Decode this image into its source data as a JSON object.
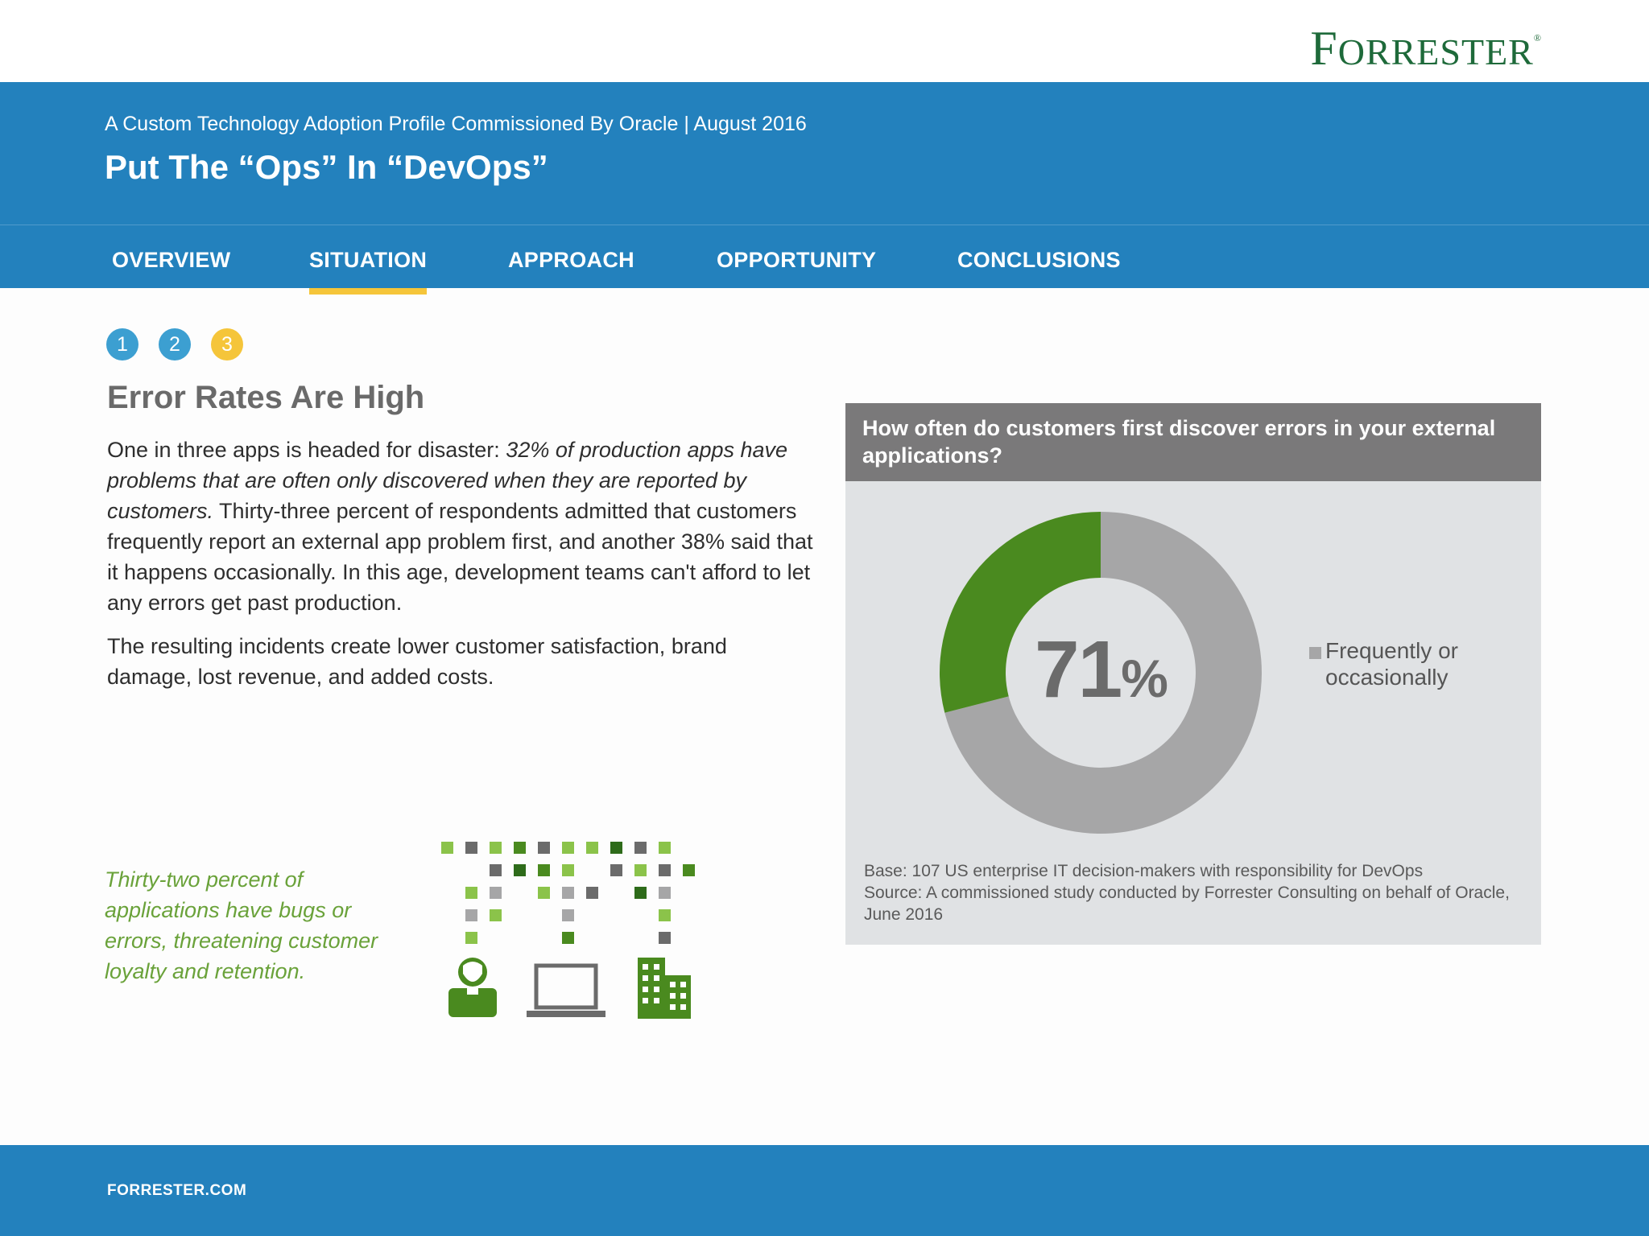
{
  "brand": {
    "logo_text": "FORRESTER",
    "registered_mark": "®"
  },
  "header": {
    "subtitle": "A Custom Technology Adoption Profile Commissioned By Oracle | August 2016",
    "title": "Put The “Ops” In “DevOps”"
  },
  "nav": {
    "items": [
      {
        "label": "OVERVIEW"
      },
      {
        "label": "SITUATION",
        "active": true
      },
      {
        "label": "APPROACH"
      },
      {
        "label": "OPPORTUNITY"
      },
      {
        "label": "CONCLUSIONS"
      }
    ]
  },
  "steps": [
    {
      "label": "1",
      "color": "#3c9fd1"
    },
    {
      "label": "2",
      "color": "#3c9fd1"
    },
    {
      "label": "3",
      "color": "#f5c53a",
      "active": true
    }
  ],
  "section": {
    "heading": "Error Rates Are High",
    "p1_lead": "One in three apps is headed for disaster: ",
    "p1_italic": "32% of production apps have problems that are often only discovered when they are reported by customers.",
    "p1_rest": " Thirty-three percent of respondents admitted that customers frequently report an external app problem first, and another 38% said that it happens occasionally. In this age, development teams can't afford to let any errors get past production.",
    "p2": "The resulting incidents create lower customer satisfaction, brand damage, lost revenue, and added costs."
  },
  "callout": "Thirty-two percent of applications have bugs or errors, threatening customer loyalty and retention.",
  "panel": {
    "question": "How often do customers first discover errors in your external applications?",
    "base_note": "Base: 107 US enterprise IT decision-makers with responsibility for DevOps",
    "source_note": "Source: A commissioned study conducted by Forrester Consulting on behalf of Oracle, June 2016"
  },
  "chart_data": {
    "type": "pie",
    "style": "donut",
    "center_label": {
      "value": "71",
      "unit": "%"
    },
    "slices": [
      {
        "label": "Frequently or occasionally",
        "value": 71,
        "color": "#a6a6a7"
      },
      {
        "label": "",
        "value": 29,
        "color": "#4a8a1f"
      }
    ],
    "legend": [
      "Frequently or occasionally"
    ],
    "legend_position": "right"
  },
  "colors": {
    "brand_blue": "#2381bd",
    "accent_yellow": "#f5c53a",
    "green": "#4a8a1f",
    "gray": "#a6a6a7"
  },
  "illustration_icons": [
    "person-icon",
    "laptop-icon",
    "building-icon"
  ],
  "footer": {
    "site": "FORRESTER.COM"
  }
}
